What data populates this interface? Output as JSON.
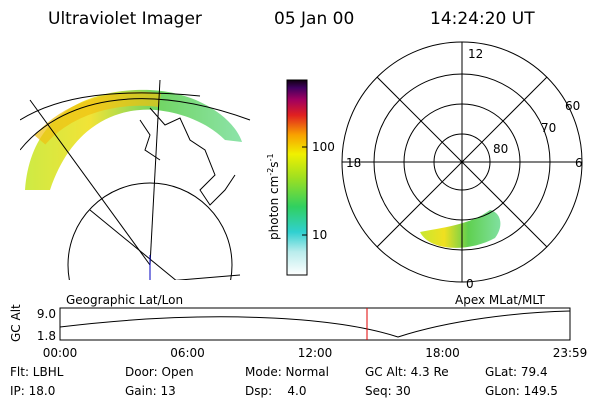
{
  "header": {
    "title": "Ultraviolet Imager",
    "date": "05 Jan 00",
    "time": "14:24:20 UT"
  },
  "colorbar": {
    "unit": "photon cm",
    "exp1": "-2",
    "unit2": "s",
    "exp2": "-1",
    "ticks": [
      "100",
      "10"
    ]
  },
  "polar": {
    "labels": {
      "top": "12",
      "left": "18",
      "right": "6",
      "bottom": "0"
    },
    "rings": [
      "60",
      "70",
      "80"
    ]
  },
  "panel_labels": {
    "left": "Geographic Lat/Lon",
    "right": "Apex MLat/MLT"
  },
  "timeline": {
    "axis_label": "GC Alt",
    "ticks": [
      "9.0",
      "1.8"
    ],
    "times": [
      "00:00",
      "06:00",
      "12:00",
      "18:00",
      "23:59"
    ]
  },
  "footer": {
    "rows": [
      [
        "Flt: LBHL",
        "Door: Open",
        "Mode: Normal",
        "GC Alt: 4.3 Re",
        "GLat: 79.4"
      ],
      [
        "IP: 18.0",
        "Gain: 13",
        "Dsp:    4.0",
        "Seq: 30",
        "GLon: 149.5"
      ]
    ]
  }
}
